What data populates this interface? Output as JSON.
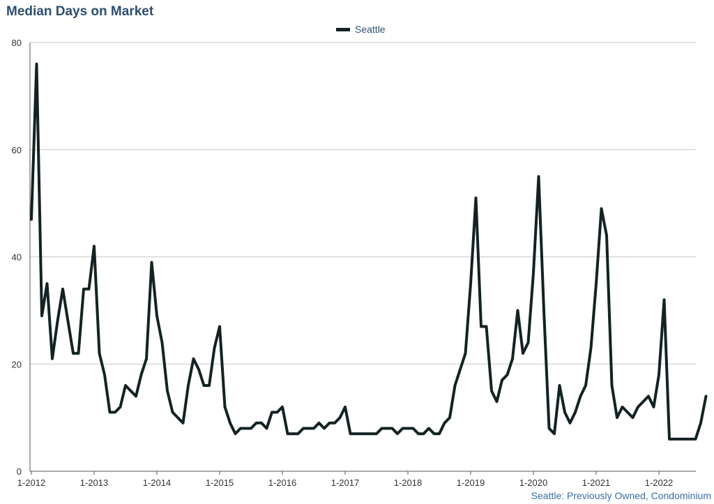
{
  "chart_data": {
    "type": "line",
    "title": "Median Days on Market",
    "xlabel": "",
    "ylabel": "",
    "ylim": [
      0,
      80
    ],
    "yticks": [
      0,
      20,
      40,
      60,
      80
    ],
    "xticks": [
      "1-2012",
      "1-2013",
      "1-2014",
      "1-2015",
      "1-2016",
      "1-2017",
      "1-2018",
      "1-2019",
      "1-2020",
      "1-2021",
      "1-2022"
    ],
    "x_start": "1-2012",
    "x_end": "8-2022",
    "legend_position": "top-center",
    "grid": true,
    "series": [
      {
        "name": "Seattle",
        "color": "#132222",
        "values": [
          47,
          76,
          29,
          35,
          21,
          28,
          34,
          28,
          22,
          22,
          34,
          34,
          42,
          22,
          18,
          11,
          11,
          12,
          16,
          15,
          14,
          18,
          21,
          39,
          29,
          24,
          15,
          11,
          10,
          9,
          16,
          21,
          19,
          16,
          16,
          23,
          27,
          12,
          9,
          7,
          8,
          8,
          8,
          9,
          9,
          8,
          11,
          11,
          12,
          7,
          7,
          7,
          8,
          8,
          8,
          9,
          8,
          9,
          9,
          10,
          12,
          7,
          7,
          7,
          7,
          7,
          7,
          8,
          8,
          8,
          7,
          8,
          8,
          8,
          7,
          7,
          8,
          7,
          7,
          9,
          10,
          16,
          19,
          22,
          35,
          51,
          27,
          27,
          15,
          13,
          17,
          18,
          21,
          30,
          22,
          24,
          37,
          55,
          30,
          8,
          7,
          16,
          11,
          9,
          11,
          14,
          16,
          23,
          35,
          49,
          44,
          16,
          10,
          12,
          11,
          10,
          12,
          13,
          14,
          12,
          18,
          32,
          6,
          6,
          6,
          6,
          6,
          6,
          9,
          14
        ]
      }
    ]
  },
  "footer": "Seattle: Previously Owned, Condominium"
}
